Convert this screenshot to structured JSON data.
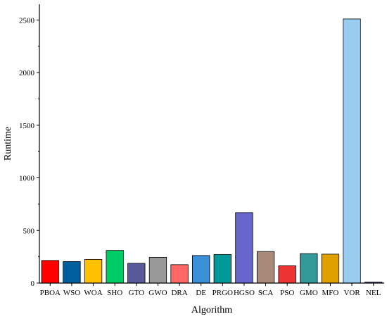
{
  "chart_data": {
    "type": "bar",
    "title": "",
    "xlabel": "Algorithm",
    "ylabel": "Runtime",
    "ylim": [
      0,
      2650
    ],
    "yticks": [
      0,
      500,
      1000,
      1500,
      2000,
      2500
    ],
    "grid": false,
    "categories": [
      "PBOA",
      "WSO",
      "WOA",
      "SHO",
      "GTO",
      "GWO",
      "DRA",
      "DE",
      "PRGO",
      "HGSO",
      "SCA",
      "PSO",
      "GMO",
      "MFO",
      "VOR",
      "NEL"
    ],
    "values": [
      215,
      205,
      225,
      310,
      188,
      245,
      175,
      262,
      272,
      670,
      300,
      165,
      280,
      275,
      2510,
      10
    ],
    "colors": [
      "#ff0000",
      "#005f9e",
      "#ffc000",
      "#00cc66",
      "#5a5a9a",
      "#999999",
      "#ff6666",
      "#3b8fd6",
      "#009999",
      "#6666cc",
      "#a88a7a",
      "#ee3333",
      "#339999",
      "#e0a000",
      "#99ccee",
      "#5566aa"
    ]
  }
}
